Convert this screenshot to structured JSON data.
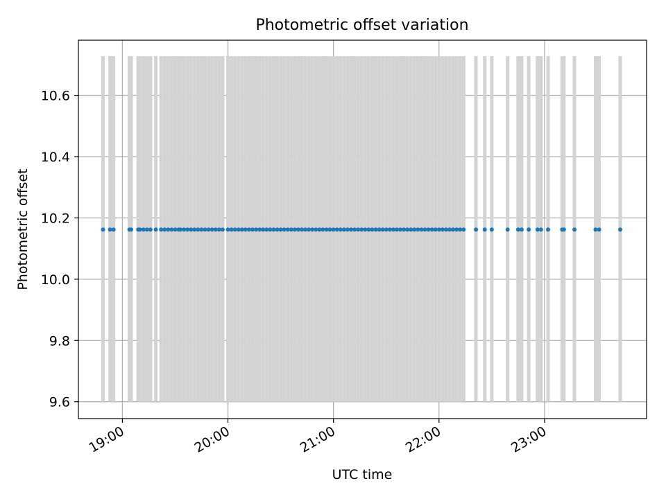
{
  "chart_data": {
    "type": "scatter",
    "title": "Photometric offset variation",
    "xlabel": "UTC time",
    "ylabel": "Photometric offset",
    "x_format": "HH:MM",
    "xlim": [
      "18:35",
      "23:58"
    ],
    "ylim": [
      9.545,
      10.78
    ],
    "x_ticks": [
      "19:00",
      "20:00",
      "21:00",
      "22:00",
      "23:00"
    ],
    "y_ticks": [
      9.6,
      9.8,
      10.0,
      10.2,
      10.4,
      10.6
    ],
    "y_tick_labels": [
      "9.6",
      "9.8",
      "10.0",
      "10.2",
      "10.4",
      "10.6"
    ],
    "grid": true,
    "marker_color": "#1f77b4",
    "errorbar_color": "#d3d3d3",
    "series": [
      {
        "offset": 10.162,
        "error_range": [
          9.6,
          10.728
        ],
        "x": [
          "18:49",
          "18:53",
          "18:55",
          "19:04",
          "19:05",
          "19:09",
          "19:10",
          "19:12",
          "19:14",
          "19:16",
          "19:19",
          "19:22",
          "19:24",
          "19:26",
          "19:28",
          "19:30",
          "19:32",
          "19:33",
          "19:35",
          "19:37",
          "19:39",
          "19:41",
          "19:43",
          "19:45",
          "19:47",
          "19:49",
          "19:51",
          "19:53",
          "19:55",
          "19:57",
          "20:00",
          "20:02",
          "20:04",
          "20:06",
          "20:08",
          "20:10",
          "20:12",
          "20:14",
          "20:16",
          "20:18",
          "20:20",
          "20:22",
          "20:24",
          "20:26",
          "20:28",
          "20:30",
          "20:32",
          "20:34",
          "20:36",
          "20:38",
          "20:40",
          "20:42",
          "20:44",
          "20:46",
          "20:48",
          "20:50",
          "20:52",
          "20:54",
          "20:56",
          "20:58",
          "21:00",
          "21:02",
          "21:04",
          "21:06",
          "21:08",
          "21:10",
          "21:12",
          "21:14",
          "21:16",
          "21:18",
          "21:20",
          "21:22",
          "21:24",
          "21:26",
          "21:28",
          "21:30",
          "21:32",
          "21:34",
          "21:36",
          "21:38",
          "21:40",
          "21:42",
          "21:44",
          "21:46",
          "21:48",
          "21:50",
          "21:52",
          "21:54",
          "21:56",
          "21:58",
          "22:00",
          "22:02",
          "22:04",
          "22:06",
          "22:08",
          "22:10",
          "22:12",
          "22:14",
          "22:21",
          "22:26",
          "22:30",
          "22:39",
          "22:45",
          "22:47",
          "22:51",
          "22:56",
          "22:58",
          "23:02",
          "23:10",
          "23:11",
          "23:17",
          "23:29",
          "23:31",
          "23:43"
        ]
      }
    ]
  }
}
